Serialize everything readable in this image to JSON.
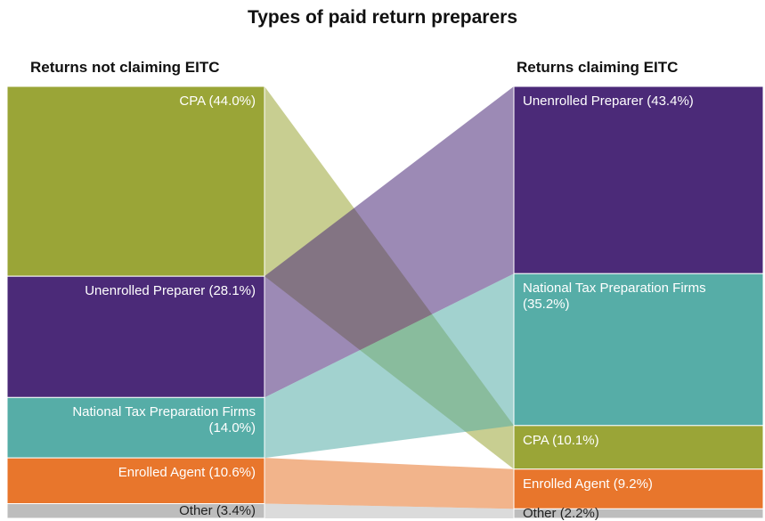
{
  "chart_data": {
    "type": "sankey",
    "title": "Types of paid return preparers",
    "columns": [
      {
        "name": "Returns not claiming EITC",
        "categories": [
          "CPA",
          "Unenrolled Preparer",
          "National Tax Preparation Firms",
          "Enrolled Agent",
          "Other"
        ],
        "values": [
          44.0,
          28.1,
          14.0,
          10.6,
          3.4
        ],
        "value_labels": [
          "(44.0%)",
          "(28.1%)",
          "(14.0%)",
          "(10.6%)",
          "(3.4%)"
        ],
        "colors": [
          "#9aa537",
          "#4b2a78",
          "#56ada7",
          "#e8762c",
          "#bdbdbd"
        ]
      },
      {
        "name": "Returns claiming EITC",
        "categories": [
          "Unenrolled Preparer",
          "National Tax Preparation Firms",
          "CPA",
          "Enrolled Agent",
          "Other"
        ],
        "values": [
          43.4,
          35.2,
          10.1,
          9.2,
          2.2
        ],
        "value_labels": [
          "(43.4%)",
          "(35.2%)",
          "(10.1%)",
          "(9.2%)",
          "(2.2%)"
        ],
        "colors": [
          "#4b2a78",
          "#56ada7",
          "#9aa537",
          "#e8762c",
          "#bdbdbd"
        ]
      }
    ]
  }
}
